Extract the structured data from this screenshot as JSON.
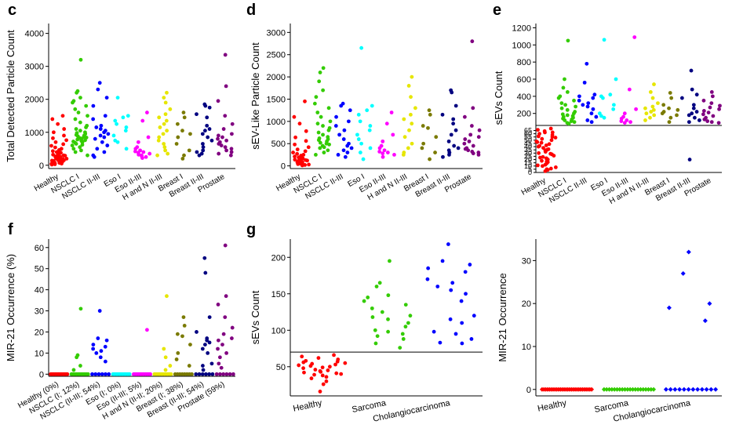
{
  "colors": {
    "red": "#ff0000",
    "green": "#33cc00",
    "blue": "#0000ff",
    "cyan": "#00ffff",
    "magenta": "#ff00ff",
    "yellow": "#e6e600",
    "olive": "#7a7a00",
    "navy": "#000080",
    "purple": "#800080"
  },
  "chart_data": [
    {
      "panel": "c",
      "type": "scatter",
      "ylabel": "Total Detected Particle Count",
      "ylim": [
        -100,
        4300
      ],
      "yticks": [
        0,
        1000,
        2000,
        3000,
        4000
      ],
      "categories": [
        "Healthy",
        "NSCLC I",
        "NSCLC II-III",
        "Eso I",
        "Eso II-III",
        "H and N II-III",
        "Breast I",
        "Breast II-III",
        "Prostate"
      ],
      "colors": [
        "red",
        "green",
        "blue",
        "cyan",
        "magenta",
        "yellow",
        "olive",
        "navy",
        "purple"
      ],
      "points": [
        [
          1500,
          1400,
          1250,
          1100,
          1000,
          900,
          820,
          760,
          700,
          640,
          590,
          540,
          500,
          460,
          430,
          400,
          380,
          360,
          340,
          320,
          300,
          290,
          280,
          270,
          260,
          250,
          240,
          230,
          220,
          210,
          200,
          190,
          180,
          170,
          160,
          150,
          140,
          130,
          120,
          110,
          100,
          90,
          80,
          70,
          60,
          50,
          40,
          30,
          20
        ],
        [
          3200,
          2250,
          2200,
          2050,
          1950,
          1900,
          1800,
          1700,
          1600,
          1500,
          1400,
          1300,
          1200,
          1150,
          1100,
          1050,
          1000,
          980,
          950,
          920,
          900,
          880,
          860,
          840,
          820,
          800,
          780,
          760,
          740,
          720,
          700,
          680,
          650,
          620,
          600,
          550,
          500,
          450,
          400,
          300
        ],
        [
          2500,
          2300,
          2050,
          1800,
          1500,
          1400,
          1200,
          1150,
          1100,
          1050,
          1000,
          950,
          900,
          850,
          800,
          700,
          600,
          500,
          400,
          300,
          250
        ],
        [
          2050,
          1500,
          1450,
          1350,
          1250,
          1150,
          1050,
          900,
          750,
          700,
          500
        ],
        [
          1600,
          1350,
          850,
          700,
          550,
          500,
          450,
          420,
          400,
          380,
          350,
          320,
          300,
          280,
          250,
          220
        ],
        [
          2200,
          2050,
          1900,
          1700,
          1550,
          1450,
          1350,
          1250,
          1150,
          1050,
          950,
          850,
          750,
          650,
          550,
          450,
          350,
          300
        ],
        [
          1600,
          1450,
          1250,
          1050,
          950,
          850,
          650,
          450,
          300,
          200
        ],
        [
          1850,
          1800,
          1750,
          1550,
          1450,
          1200,
          1100,
          1050,
          950,
          850,
          750,
          650,
          550,
          450,
          400,
          350,
          300
        ],
        [
          3350,
          2400,
          1950,
          1500,
          1250,
          1100,
          950,
          900,
          850,
          800,
          750,
          700,
          650,
          600,
          550,
          500,
          450,
          400,
          350,
          300
        ]
      ]
    },
    {
      "panel": "d",
      "type": "scatter",
      "ylabel": "sEV-Like Particle Count",
      "ylim": [
        -60,
        3200
      ],
      "yticks": [
        0,
        500,
        1000,
        1500,
        2000,
        2500,
        3000
      ],
      "categories": [
        "Healthy",
        "NSCLC I",
        "NSCLC II-III",
        "Eso I",
        "Eso II-III",
        "H and N II-III",
        "Breast I",
        "Breast II-III",
        "Prostate"
      ],
      "colors": [
        "red",
        "green",
        "blue",
        "cyan",
        "magenta",
        "yellow",
        "olive",
        "navy",
        "purple"
      ],
      "points": [
        [
          1450,
          1100,
          950,
          780,
          640,
          560,
          480,
          420,
          370,
          330,
          300,
          270,
          250,
          230,
          210,
          190,
          170,
          160,
          150,
          140,
          130,
          120,
          110,
          100,
          90,
          80,
          70,
          60,
          50,
          40,
          30,
          20,
          10
        ],
        [
          2200,
          2100,
          1900,
          1700,
          1550,
          1400,
          1300,
          1200,
          1100,
          1000,
          950,
          900,
          850,
          800,
          750,
          700,
          650,
          620,
          600,
          580,
          550,
          520,
          500,
          480,
          450,
          420,
          400,
          350,
          300,
          250
        ],
        [
          1400,
          1350,
          1250,
          1100,
          1000,
          900,
          800,
          700,
          600,
          500,
          450,
          400,
          350,
          300,
          250,
          200
        ],
        [
          2650,
          1350,
          1250,
          1150,
          1000,
          900,
          800,
          700,
          600,
          500,
          400,
          300,
          150
        ],
        [
          1200,
          950,
          700,
          550,
          450,
          400,
          350,
          320,
          300,
          280,
          250,
          200
        ],
        [
          2000,
          1800,
          1550,
          1300,
          1150,
          1050,
          950,
          800,
          650,
          500,
          400,
          300,
          250
        ],
        [
          1250,
          1150,
          900,
          850,
          650,
          500,
          400,
          300,
          150
        ],
        [
          1700,
          1650,
          1350,
          1150,
          1050,
          950,
          800,
          700,
          550,
          450,
          400,
          350,
          300,
          250,
          200
        ],
        [
          2800,
          1300,
          1100,
          900,
          800,
          700,
          650,
          600,
          550,
          500,
          450,
          400,
          380,
          350,
          320,
          300,
          280,
          250
        ]
      ]
    },
    {
      "panel": "e",
      "type": "scatter",
      "ylabel": "sEVs Count",
      "broken_axis": true,
      "cutoff_line": 70,
      "upper_ylim": [
        60,
        1250
      ],
      "upper_yticks": [
        200,
        400,
        600,
        800,
        1000,
        1200
      ],
      "lower_ylim": [
        0,
        68
      ],
      "lower_yticks": [
        0,
        5,
        10,
        15,
        20,
        25,
        30,
        35,
        40,
        45,
        50,
        55,
        60,
        65
      ],
      "categories": [
        "Healthy",
        "NSCLC I",
        "NSCLC II-III",
        "Eso I",
        "Eso II-III",
        "H and N II-III",
        "Breast I",
        "Breast II-III",
        "Prostate"
      ],
      "colors": [
        "red",
        "green",
        "blue",
        "cyan",
        "magenta",
        "yellow",
        "olive",
        "navy",
        "purple"
      ],
      "points": [
        [
          68,
          66,
          64,
          62,
          60,
          58,
          56,
          54,
          52,
          50,
          48,
          46,
          44,
          42,
          40,
          38,
          36,
          34,
          32,
          30,
          28,
          26,
          24,
          22,
          20,
          18,
          16,
          14,
          12,
          10,
          8,
          6,
          4,
          2,
          62,
          55,
          47,
          41,
          35,
          29,
          23,
          17,
          11,
          5
        ],
        [
          1050,
          600,
          500,
          450,
          400,
          380,
          350,
          320,
          300,
          280,
          260,
          240,
          220,
          200,
          190,
          180,
          170,
          160,
          150,
          140,
          130,
          120,
          110,
          100,
          90,
          80
        ],
        [
          780,
          560,
          420,
          400,
          380,
          350,
          320,
          300,
          280,
          250,
          200,
          160,
          120,
          100
        ],
        [
          1060,
          600,
          420,
          400,
          380,
          300,
          250,
          200,
          170,
          150
        ],
        [
          1090,
          480,
          250,
          200,
          160,
          140,
          120,
          110,
          100,
          90
        ],
        [
          540,
          450,
          380,
          320,
          280,
          260,
          240,
          220,
          200,
          180,
          150,
          120
        ],
        [
          440,
          380,
          300,
          260,
          240,
          220,
          200,
          180,
          150,
          100
        ],
        [
          700,
          480,
          420,
          380,
          300,
          260,
          220,
          200,
          180,
          150,
          120,
          100,
          20
        ],
        [
          450,
          400,
          350,
          320,
          290,
          270,
          250,
          230,
          210,
          190,
          170,
          150,
          130,
          110,
          100,
          90
        ]
      ]
    },
    {
      "panel": "f",
      "type": "scatter",
      "ylabel": "MIR-21 Occurrence (%)",
      "ylim": [
        -1,
        64
      ],
      "yticks": [
        0,
        10,
        20,
        30,
        40,
        50,
        60
      ],
      "categories": [
        "Healthy (0%)",
        "NSCLC (I; 12%)",
        "NSCLC (II-III; 54%)",
        "Eso (I; 0%)",
        "Eso (II-III; 5%)",
        "H and N (II-II; 20%)",
        "Breast (I; 38%)",
        "Breast (II-III; 54%)",
        "Prostate (59%)"
      ],
      "colors": [
        "red",
        "green",
        "blue",
        "cyan",
        "magenta",
        "yellow",
        "olive",
        "navy",
        "purple"
      ],
      "points": [
        [
          0,
          0,
          0,
          0,
          0,
          0,
          0,
          0,
          0,
          0,
          0,
          0,
          0,
          0,
          0,
          0
        ],
        [
          31,
          9,
          8,
          4,
          2,
          0,
          0,
          0,
          0,
          0,
          0,
          0,
          0,
          0,
          0,
          0
        ],
        [
          30,
          17,
          16,
          14,
          13,
          12,
          11,
          10,
          8,
          6,
          0,
          0,
          0,
          0,
          0,
          0
        ],
        [
          0,
          0,
          0,
          0,
          0,
          0,
          0,
          0,
          0,
          0,
          0,
          0,
          0,
          0,
          0,
          0
        ],
        [
          21,
          0,
          0,
          0,
          0,
          0,
          0,
          0,
          0,
          0,
          0,
          0,
          0,
          0,
          0,
          0
        ],
        [
          37,
          12,
          8,
          4,
          2,
          0,
          0,
          0,
          0,
          0,
          0,
          0,
          0,
          0,
          0,
          0
        ],
        [
          27,
          23,
          19,
          18,
          14,
          10,
          7,
          4,
          0,
          0,
          0,
          0,
          0,
          0,
          0,
          0
        ],
        [
          55,
          48,
          27,
          20,
          17,
          16,
          15,
          14,
          12,
          10,
          5,
          4,
          2,
          0,
          0,
          0,
          0,
          0,
          0
        ],
        [
          61,
          37,
          33,
          27,
          22,
          19,
          17,
          16,
          14,
          12,
          10,
          8,
          5,
          3,
          0,
          0,
          0,
          0,
          0,
          0
        ]
      ]
    },
    {
      "panel": "g",
      "type": "scatter",
      "ylabel": "sEVs Count",
      "ylim": [
        10,
        225
      ],
      "yticks": [
        50,
        100,
        150,
        200
      ],
      "cutoff_line": 70,
      "categories": [
        "Healthy",
        "Sarcoma",
        "Cholangiocarcinoma"
      ],
      "colors": [
        "red",
        "green",
        "blue"
      ],
      "points": [
        [
          66,
          64,
          62,
          60,
          58,
          57,
          56,
          55,
          54,
          53,
          52,
          51,
          50,
          49,
          48,
          46,
          45,
          44,
          43,
          42,
          41,
          40,
          39,
          38,
          36,
          34,
          30,
          26,
          16
        ],
        [
          195,
          165,
          160,
          148,
          145,
          140,
          135,
          130,
          125,
          120,
          118,
          115,
          110,
          105,
          100,
          98,
          95,
          92,
          88,
          82,
          76
        ],
        [
          218,
          195,
          190,
          185,
          180,
          170,
          165,
          160,
          155,
          150,
          140,
          120,
          115,
          110,
          98,
          95,
          88,
          83,
          82
        ]
      ]
    },
    {
      "panel": "g-right",
      "type": "scatter",
      "ylabel": "MIR-21 Occurrence",
      "ylim": [
        -1.5,
        35
      ],
      "yticks": [
        0,
        10,
        20,
        30
      ],
      "categories": [
        "Healthy",
        "Sarcoma",
        "Cholangiocarcinoma"
      ],
      "colors": [
        "red",
        "green",
        "blue"
      ],
      "points": [
        [
          0,
          0,
          0,
          0,
          0,
          0,
          0,
          0,
          0,
          0,
          0,
          0,
          0,
          0,
          0,
          0,
          0,
          0,
          0,
          0,
          0,
          0,
          0,
          0,
          0,
          0,
          0,
          0
        ],
        [
          0,
          0,
          0,
          0,
          0,
          0,
          0,
          0,
          0,
          0,
          0,
          0,
          0,
          0,
          0,
          0,
          0,
          0,
          0,
          0
        ],
        [
          32,
          27,
          20,
          19,
          16,
          0,
          0,
          0,
          0,
          0,
          0,
          0,
          0,
          0,
          0,
          0,
          0
        ]
      ]
    }
  ]
}
